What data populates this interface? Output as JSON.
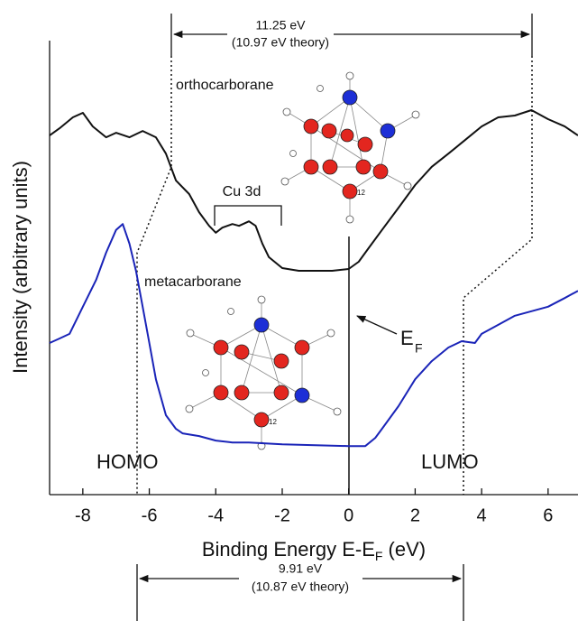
{
  "chart_data": {
    "type": "line",
    "y_label": "Intensity (arbitrary units)",
    "x_label": [
      "Binding Energy E-E",
      "F",
      " (eV)"
    ],
    "xlim": [
      -9,
      6.9
    ],
    "ylim": [
      0,
      100
    ],
    "xticks": [
      -8,
      -6,
      -4,
      -2,
      0,
      2,
      4,
      6
    ],
    "series": [
      {
        "name": "orthocarborane",
        "color": "#111111",
        "x": [
          -9,
          -8.7,
          -8.3,
          -8,
          -7.7,
          -7.3,
          -7,
          -6.6,
          -6.2,
          -5.8,
          -5.5,
          -5.2,
          -4.8,
          -4.5,
          -4.2,
          -4,
          -3.8,
          -3.5,
          -3.3,
          -3,
          -2.8,
          -2.6,
          -2.4,
          -2,
          -1.5,
          -1,
          -0.5,
          0,
          0.3,
          0.6,
          1,
          1.5,
          2,
          2.5,
          3,
          3.5,
          4,
          4.5,
          5,
          5.5,
          6,
          6.5,
          6.9
        ],
        "values": [
          79.1,
          80.7,
          83.1,
          84.1,
          81.1,
          78.7,
          79.7,
          78.7,
          80.1,
          78.7,
          75.1,
          69.2,
          66.2,
          62.2,
          59.2,
          57.7,
          58.8,
          59.6,
          59.2,
          60.2,
          59.2,
          55.3,
          52.3,
          49.9,
          49.3,
          49.3,
          49.3,
          49.7,
          51.3,
          54.3,
          58.3,
          63.2,
          68.2,
          72.2,
          75.1,
          78.1,
          81.1,
          83.1,
          83.5,
          84.7,
          82.7,
          81.1,
          79.1
        ]
      },
      {
        "name": "metacarborane",
        "color": "#1a24b8",
        "x": [
          -9,
          -8.7,
          -8.4,
          -8,
          -7.6,
          -7.3,
          -7,
          -6.8,
          -6.6,
          -6.4,
          -6.2,
          -6,
          -5.8,
          -5.5,
          -5.2,
          -5,
          -4.5,
          -4,
          -3.5,
          -3,
          -2,
          -1,
          0,
          0.5,
          0.8,
          1,
          1.5,
          2,
          2.5,
          3,
          3.4,
          3.8,
          4,
          4.5,
          5,
          5.5,
          6,
          6.5,
          6.9
        ],
        "values": [
          33.4,
          34.4,
          35.4,
          41.4,
          47.3,
          53.3,
          58.3,
          59.6,
          55.3,
          49.3,
          41.4,
          33.4,
          25.4,
          17.5,
          14.5,
          13.5,
          12.9,
          11.9,
          11.5,
          11.5,
          11.1,
          10.9,
          10.7,
          10.7,
          12.5,
          14.5,
          19.5,
          25.4,
          29.4,
          32.4,
          33.8,
          33.4,
          35.4,
          37.4,
          39.4,
          40.4,
          41.4,
          43.3,
          44.9
        ]
      }
    ]
  },
  "annotations": {
    "ortho_gap": "11.25 eV",
    "ortho_gap_theory": "(10.97 eV theory)",
    "meta_gap": "9.91 eV",
    "meta_gap_theory": "(10.87 eV theory)",
    "cu": "Cu 3d",
    "fermi": "E",
    "fermi_sub": "F",
    "homo": "HOMO",
    "lumo": "LUMO",
    "ortho_atom": "12",
    "meta_atom": "12"
  }
}
